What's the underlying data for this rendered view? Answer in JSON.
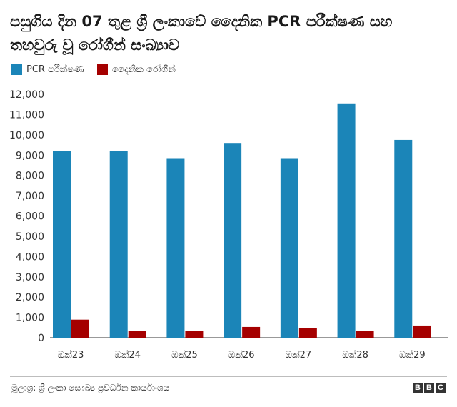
{
  "title": "පසුගිය දින 07 තුළ ශ්‍රී ලංකාවේ දෛනික PCR පරීක්ෂණ සහ තහවුරු වූ රෝගීන් සංඛ්‍යාව",
  "colors": {
    "pcr": "#1b85b8",
    "cases": "#a50000"
  },
  "chart_data": {
    "type": "bar",
    "title": "පසුගිය දින 07 තුළ ශ්‍රී ලංකාවේ දෛනික PCR පරීක්ෂණ සහ තහවුරු වූ රෝගීන් සංඛ්‍යාව",
    "categories": [
      "ඔක්23",
      "ඔක්24",
      "ඔක්25",
      "ඔක්26",
      "ඔක්27",
      "ඔක්28",
      "ඔක්29"
    ],
    "series": [
      {
        "name": "PCR පරීක්ෂණ",
        "color": "#1b85b8",
        "values": [
          9200,
          9200,
          8850,
          9600,
          8850,
          11550,
          9750
        ]
      },
      {
        "name": "දෛනික රෝගීන්",
        "color": "#a50000",
        "values": [
          890,
          350,
          350,
          530,
          460,
          350,
          600
        ]
      }
    ],
    "ylim": [
      0,
      12000
    ],
    "yticks": [
      "0",
      "1,000",
      "2,000",
      "3,000",
      "4,000",
      "5,000",
      "6,000",
      "7,000",
      "8,000",
      "9,000",
      "10,000",
      "11,000",
      "12,000"
    ],
    "grid": false,
    "legend": "top-left",
    "xlabel": "",
    "ylabel": ""
  },
  "source": "මූලාශ්‍ර: ශ්‍රී ලංකා සෞඛ්‍ය ප්‍රවර්ධන කාර්යාංශය",
  "logo": [
    "B",
    "B",
    "C"
  ]
}
